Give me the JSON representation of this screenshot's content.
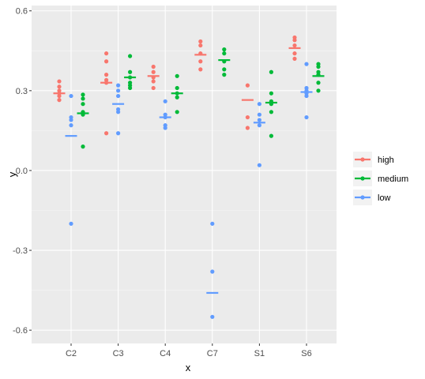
{
  "chart_data": {
    "type": "scatter",
    "xlabel": "x",
    "ylabel": "y",
    "categories": [
      "C2",
      "C3",
      "C4",
      "C7",
      "S1",
      "S6"
    ],
    "y_ticks": [
      "-0.6",
      "-0.3",
      "0.0",
      "0.3",
      "0.6"
    ],
    "ylim": [
      -0.65,
      0.62
    ],
    "grid": true,
    "legend_position": "right",
    "colors": {
      "high": "#F8766D",
      "medium": "#00BA38",
      "low": "#619CFF",
      "panel": "#EBEBEB",
      "grid": "#FFFFFF"
    },
    "series": [
      {
        "name": "high",
        "color": "#F8766D",
        "points": {
          "C2": [
            0.335,
            0.315,
            0.3,
            0.29,
            0.28,
            0.265
          ],
          "C3": [
            0.44,
            0.41,
            0.36,
            0.34,
            0.33,
            0.14
          ],
          "C4": [
            0.39,
            0.37,
            0.35,
            0.335,
            0.31
          ],
          "C7": [
            0.485,
            0.47,
            0.44,
            0.41,
            0.38
          ],
          "S1": [
            0.32,
            0.2,
            0.16
          ],
          "S6": [
            0.5,
            0.49,
            0.47,
            0.44,
            0.42
          ]
        },
        "means": {
          "C2": 0.29,
          "C3": 0.33,
          "C4": 0.355,
          "C7": 0.435,
          "S1": 0.265,
          "S6": 0.46
        }
      },
      {
        "name": "medium",
        "color": "#00BA38",
        "points": {
          "C2": [
            0.285,
            0.27,
            0.25,
            0.22,
            0.21,
            0.09
          ],
          "C3": [
            0.43,
            0.37,
            0.35,
            0.33,
            0.32,
            0.31
          ],
          "C4": [
            0.355,
            0.31,
            0.29,
            0.275,
            0.22
          ],
          "C7": [
            0.455,
            0.44,
            0.41,
            0.38,
            0.36
          ],
          "S1": [
            0.37,
            0.29,
            0.26,
            0.25,
            0.22,
            0.13
          ],
          "S6": [
            0.4,
            0.39,
            0.37,
            0.36,
            0.33,
            0.3
          ]
        },
        "means": {
          "C2": 0.215,
          "C3": 0.35,
          "C4": 0.29,
          "C7": 0.415,
          "S1": 0.255,
          "S6": 0.355
        }
      },
      {
        "name": "low",
        "color": "#619CFF",
        "points": {
          "C2": [
            0.28,
            0.2,
            0.19,
            0.17,
            -0.2
          ],
          "C3": [
            0.32,
            0.3,
            0.28,
            0.23,
            0.22,
            0.14
          ],
          "C4": [
            0.26,
            0.21,
            0.2,
            0.17,
            0.16
          ],
          "C7": [
            -0.2,
            -0.38,
            -0.55
          ],
          "S1": [
            0.25,
            0.21,
            0.19,
            0.17,
            0.02
          ],
          "S6": [
            0.4,
            0.31,
            0.3,
            0.29,
            0.28,
            0.2
          ]
        },
        "means": {
          "C2": 0.13,
          "C3": 0.25,
          "C4": 0.2,
          "C7": -0.46,
          "S1": 0.18,
          "S6": 0.295
        }
      }
    ]
  }
}
